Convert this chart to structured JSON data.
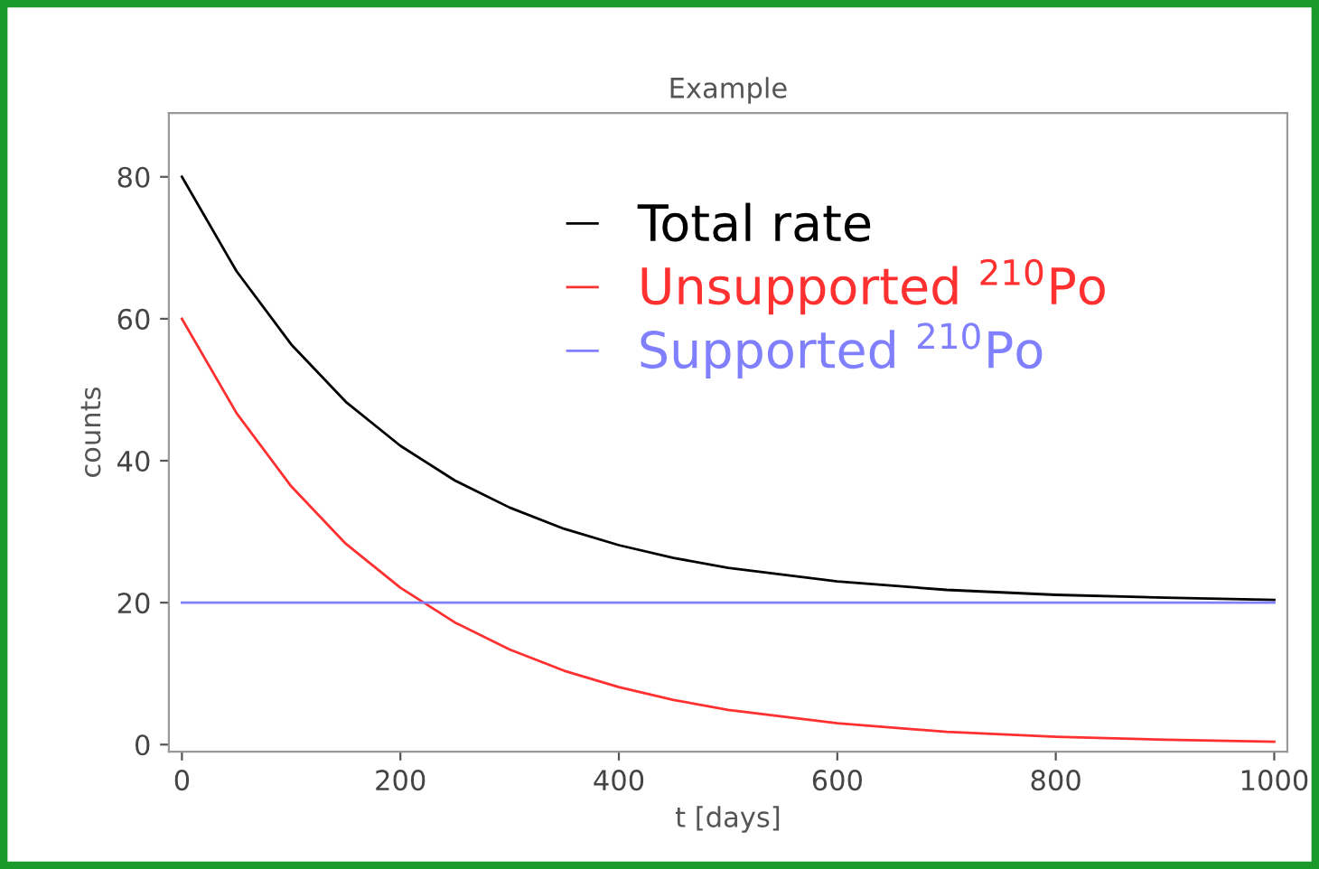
{
  "chart_data": {
    "type": "line",
    "title": "Example",
    "xlabel": "t [days]",
    "ylabel": "counts",
    "x": [
      0,
      50,
      100,
      150,
      200,
      250,
      300,
      350,
      400,
      450,
      500,
      600,
      700,
      800,
      900,
      1000
    ],
    "series": [
      {
        "name": "Total rate",
        "color": "#000000",
        "values": [
          80,
          66.7,
          56.4,
          48.3,
          42.1,
          37.2,
          33.4,
          30.4,
          28.1,
          26.3,
          24.9,
          23.0,
          21.8,
          21.1,
          20.7,
          20.4
        ]
      },
      {
        "name": "Unsupported $^{210}$Po",
        "color": "#ff3030",
        "values": [
          60,
          46.7,
          36.4,
          28.3,
          22.1,
          17.2,
          13.4,
          10.4,
          8.1,
          6.3,
          4.9,
          3.0,
          1.8,
          1.1,
          0.7,
          0.4
        ]
      },
      {
        "name": "Supported $^{210}$Po",
        "color": "#8080ff",
        "values": [
          20,
          20,
          20,
          20,
          20,
          20,
          20,
          20,
          20,
          20,
          20,
          20,
          20,
          20,
          20,
          20
        ]
      }
    ],
    "xlim": [
      -12,
      1012
    ],
    "ylim": [
      -1,
      89
    ],
    "xticks": [
      0,
      200,
      400,
      600,
      800,
      1000
    ],
    "yticks": [
      0,
      20,
      40,
      60,
      80
    ],
    "grid": false,
    "legend": "top right",
    "marker": "none",
    "line_style": "solid"
  }
}
